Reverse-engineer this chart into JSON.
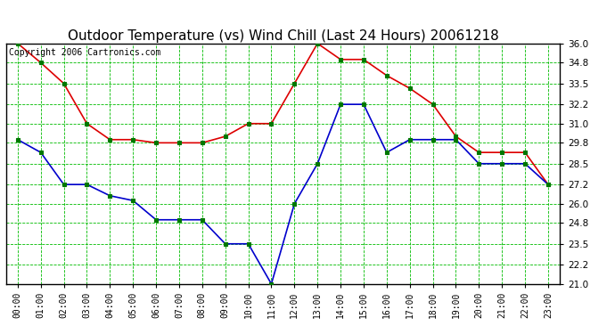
{
  "title": "Outdoor Temperature (vs) Wind Chill (Last 24 Hours) 20061218",
  "copyright": "Copyright 2006 Cartronics.com",
  "hours": [
    "00:00",
    "01:00",
    "02:00",
    "03:00",
    "04:00",
    "05:00",
    "06:00",
    "07:00",
    "08:00",
    "09:00",
    "10:00",
    "11:00",
    "12:00",
    "13:00",
    "14:00",
    "15:00",
    "16:00",
    "17:00",
    "18:00",
    "19:00",
    "20:00",
    "21:00",
    "22:00",
    "23:00"
  ],
  "temp_red": [
    36.0,
    34.8,
    33.5,
    31.0,
    30.0,
    30.0,
    29.8,
    29.8,
    29.8,
    30.2,
    31.0,
    31.0,
    33.5,
    36.0,
    35.0,
    35.0,
    34.0,
    33.2,
    32.2,
    30.2,
    29.2,
    29.2,
    29.2,
    27.2
  ],
  "wind_chill_blue": [
    30.0,
    29.2,
    27.2,
    27.2,
    26.5,
    26.2,
    25.0,
    25.0,
    25.0,
    23.5,
    23.5,
    21.0,
    26.0,
    28.5,
    32.2,
    32.2,
    29.2,
    30.0,
    30.0,
    30.0,
    28.5,
    28.5,
    28.5,
    27.2
  ],
  "ylim": [
    21.0,
    36.0
  ],
  "yticks": [
    21.0,
    22.2,
    23.5,
    24.8,
    26.0,
    27.2,
    28.5,
    29.8,
    31.0,
    32.2,
    33.5,
    34.8,
    36.0
  ],
  "bg_color": "#ffffff",
  "plot_bg_color": "#ffffff",
  "grid_color": "#00bb00",
  "line_color_red": "#dd0000",
  "line_color_blue": "#0000cc",
  "marker_color": "#007700",
  "title_fontsize": 11,
  "copyright_fontsize": 7,
  "figwidth": 6.9,
  "figheight": 3.75,
  "dpi": 100
}
